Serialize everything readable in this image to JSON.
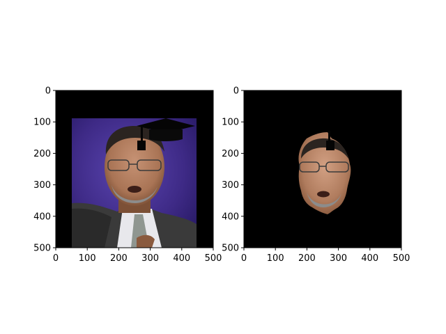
{
  "chart_data": [
    {
      "type": "image",
      "content": "portrait photo of a man with glasses in a suit, with a black graduation cap overlay",
      "xlim": [
        0,
        500
      ],
      "ylim": [
        500,
        0
      ],
      "xticks": [
        0,
        100,
        200,
        300,
        400,
        500
      ],
      "yticks": [
        0,
        100,
        200,
        300,
        400,
        500
      ]
    },
    {
      "type": "image",
      "content": "segmented face of the same man on a black background, with a black cap-tassel fragment",
      "xlim": [
        0,
        500
      ],
      "ylim": [
        500,
        0
      ],
      "xticks": [
        0,
        100,
        200,
        300,
        400,
        500
      ],
      "yticks": [
        0,
        100,
        200,
        300,
        400,
        500
      ]
    }
  ],
  "colors": {
    "background": "#000000",
    "purple_backdrop": "#3e2a86",
    "skin": "#b07c5e",
    "suit": "#3a3a3a"
  }
}
